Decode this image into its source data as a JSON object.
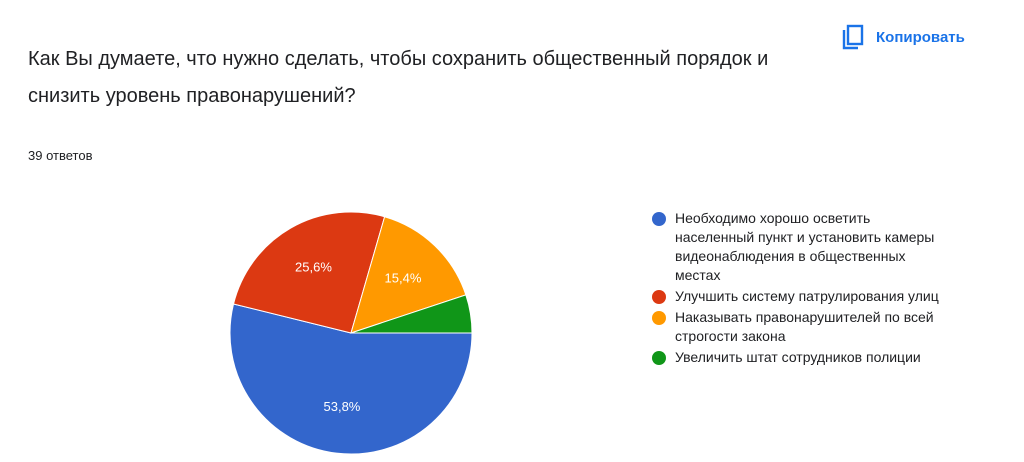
{
  "copy_button": {
    "label": "Копировать"
  },
  "chart_data": {
    "type": "pie",
    "title": "Как Вы думаете, что нужно сделать, чтобы сохранить общественный порядок и снизить уровень правонарушений?",
    "subtitle": "39 ответов",
    "categories": [
      "Необходимо хорошо осветить населенный пункт и установить камеры видеонаблюдения в общественных местах",
      "Улучшить систему патрулирования улиц",
      "Наказывать правонарушителей по всей строгости закона",
      "Увеличить штат сотрудников полиции"
    ],
    "values": [
      53.8,
      25.6,
      15.4,
      5.1
    ],
    "value_labels": [
      "53,8%",
      "25,6%",
      "15,4%",
      null
    ],
    "colors": [
      "#3366cc",
      "#dc3912",
      "#ff9900",
      "#109618"
    ],
    "legend": "right"
  }
}
